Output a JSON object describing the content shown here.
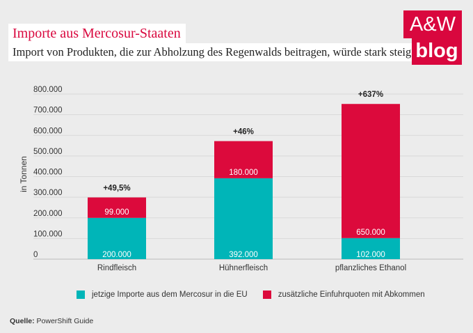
{
  "header": {
    "title": "Importe aus Mercosur-Staaten",
    "subtitle": "Import von Produkten, die zur Abholzung des Regenwalds beitragen, würde stark steigen"
  },
  "logo": {
    "line1": "A&W",
    "line2": "blog"
  },
  "source": {
    "label": "Quelle:",
    "text": "PowerShift Guide"
  },
  "colors": {
    "current": "#00b5b8",
    "additional": "#dc0a3c",
    "accent": "#d9073e"
  },
  "chart_data": {
    "type": "bar",
    "stacked": true,
    "ylabel": "in Tonnen",
    "ylim": [
      0,
      800000
    ],
    "yticks": [
      0,
      100000,
      200000,
      300000,
      400000,
      500000,
      600000,
      700000,
      800000
    ],
    "ytick_labels": [
      "0",
      "100.000",
      "200.000",
      "300.000",
      "400.000",
      "500.000",
      "600.000",
      "700.000",
      "800.000"
    ],
    "grid": true,
    "legend_position": "bottom",
    "categories": [
      "Rindfleisch",
      "Hühnerfleisch",
      "pflanzliches Ethanol"
    ],
    "series": [
      {
        "name": "jetzige Importe aus dem Mercosur in die EU",
        "values": [
          200000,
          392000,
          102000
        ],
        "labels": [
          "200.000",
          "392.000",
          "102.000"
        ]
      },
      {
        "name": "zusätzliche Einfuhrquoten mit Abkommen",
        "values": [
          99000,
          180000,
          650000
        ],
        "labels": [
          "99.000",
          "180.000",
          "650.000"
        ]
      }
    ],
    "annotations": [
      "+49,5%",
      "+46%",
      "+637%"
    ]
  }
}
